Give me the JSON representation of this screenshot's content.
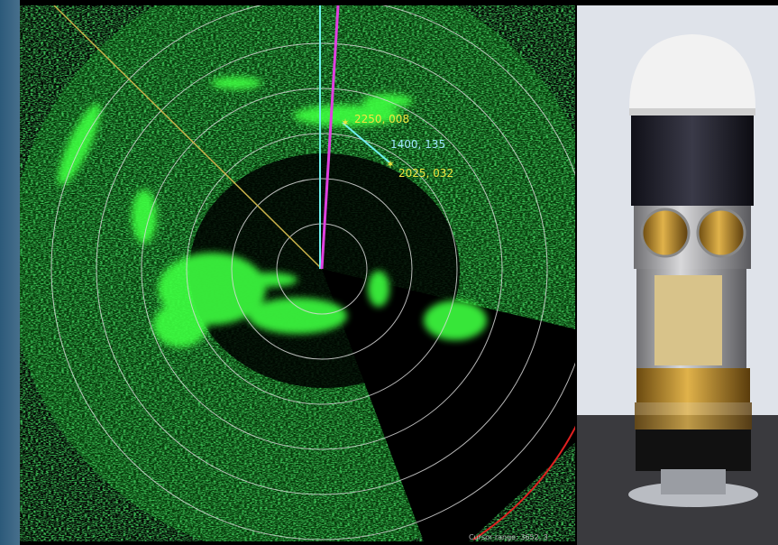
{
  "targets": [
    {
      "label": "2250, 008"
    },
    {
      "label": "1400, 135"
    },
    {
      "label": "2025, 032"
    }
  ],
  "status": {
    "cursor_range": "Cursor range: 3652, 3"
  }
}
